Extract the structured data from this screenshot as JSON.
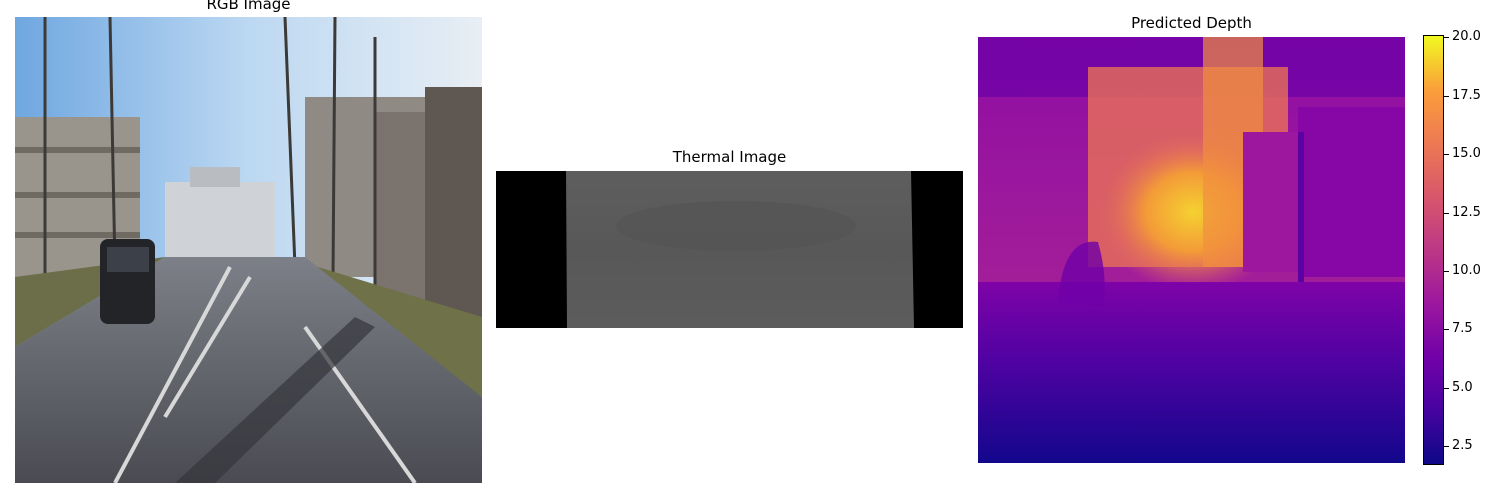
{
  "panels": {
    "rgb": {
      "title": "RGB Image"
    },
    "thermal": {
      "title": "Thermal Image"
    },
    "depth": {
      "title": "Predicted Depth"
    }
  },
  "colorbar": {
    "min": 1.7,
    "max": 20.1,
    "ticks": [
      {
        "value": 2.5,
        "label": "2.5"
      },
      {
        "value": 5.0,
        "label": "5.0"
      },
      {
        "value": 7.5,
        "label": "7.5"
      },
      {
        "value": 10.0,
        "label": "10.0"
      },
      {
        "value": 12.5,
        "label": "12.5"
      },
      {
        "value": 15.0,
        "label": "15.0"
      },
      {
        "value": 17.5,
        "label": "17.5"
      },
      {
        "value": 20.0,
        "label": "20.0"
      }
    ]
  }
}
